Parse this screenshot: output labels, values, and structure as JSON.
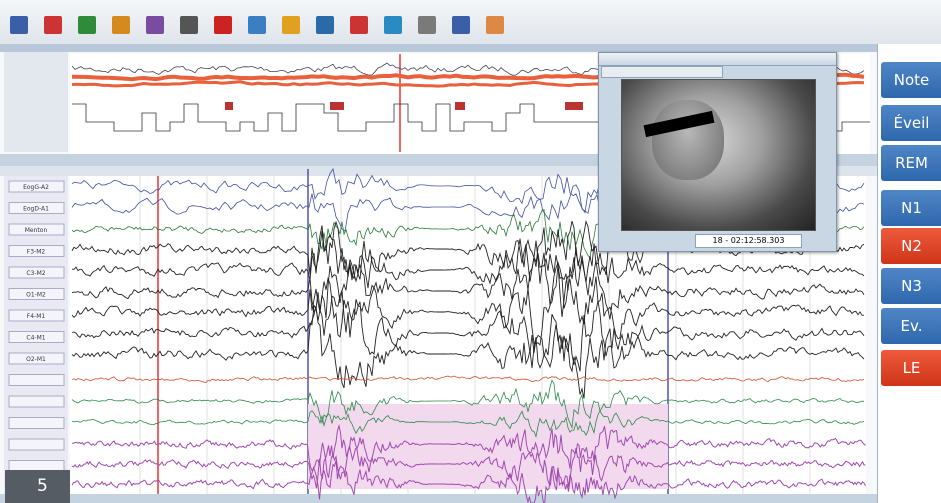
{
  "stage_buttons": [
    "Note",
    "Éveil",
    "REM",
    "N1",
    "N2",
    "N3",
    "Ev.",
    "LE"
  ],
  "channels": [
    "EogG-A2",
    "EogD-A1",
    "Menton",
    "F3-M2",
    "C3-M2",
    "O1-M2",
    "F4-M1",
    "C4-M1",
    "O2-M1"
  ],
  "video": {
    "timestamp": "18 - 02:12:58.303"
  },
  "figure_number": "5"
}
